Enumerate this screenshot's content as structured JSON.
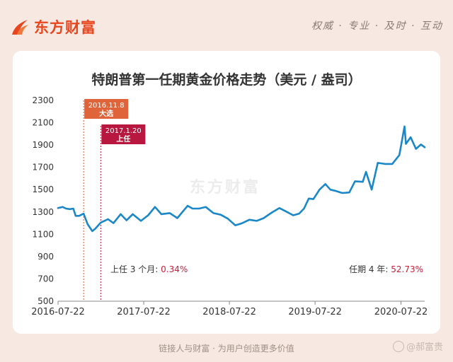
{
  "brand": {
    "name": "东方财富"
  },
  "slogan": "权威 · 专业 · 及时 · 互动",
  "footer": "链接人与财富 · 为用户创造更多价值",
  "watermark": "@郝富贵",
  "colors": {
    "line": "#1a87c8",
    "brand": "#e8461e",
    "badge_election": "#e0643a",
    "badge_inauguration": "#b8173f",
    "highlight": "#c8203c"
  },
  "chart_data": {
    "type": "line",
    "title": "特朗普第一任期黄金价格走势（美元 / 盎司）",
    "xlabel": "",
    "ylabel": "",
    "x_range": [
      "2016-07-22",
      "2020-10-31"
    ],
    "ylim": [
      500,
      2300
    ],
    "y_ticks": [
      "500",
      "700",
      "900",
      "1100",
      "1300",
      "1500",
      "1700",
      "1900",
      "2100",
      "2300"
    ],
    "x_ticks": [
      "2016-07-22",
      "2017-07-22",
      "2018-07-22",
      "2019-07-22",
      "2020-07-22"
    ],
    "watermark": "东方财富",
    "annotations": [
      {
        "date": "2016-11-08",
        "line1": "2016.11.8",
        "line2": "大选"
      },
      {
        "date": "2017-01-20",
        "line1": "2017.1.20",
        "line2": "上任"
      }
    ],
    "stat_left": {
      "label": "上任 3 个月:",
      "value": "0.34%"
    },
    "stat_right": {
      "label": "任期 4 年:",
      "value": "52.73%"
    },
    "series": [
      {
        "x": [
          "2016-07-22",
          "2016-08-10",
          "2016-08-25",
          "2016-09-10",
          "2016-09-25",
          "2016-10-05",
          "2016-10-20",
          "2016-11-08",
          "2016-11-25",
          "2016-12-15",
          "2016-12-28",
          "2017-01-20",
          "2017-02-20",
          "2017-03-15",
          "2017-04-15",
          "2017-05-10",
          "2017-06-05",
          "2017-07-10",
          "2017-08-10",
          "2017-09-08",
          "2017-10-05",
          "2017-11-10",
          "2017-12-12",
          "2018-01-25",
          "2018-02-15",
          "2018-03-15",
          "2018-04-12",
          "2018-05-15",
          "2018-06-15",
          "2018-07-15",
          "2018-08-16",
          "2018-09-15",
          "2018-10-15",
          "2018-11-15",
          "2018-12-15",
          "2019-01-15",
          "2019-02-20",
          "2019-03-15",
          "2019-04-20",
          "2019-05-15",
          "2019-06-05",
          "2019-06-25",
          "2019-07-15",
          "2019-08-10",
          "2019-09-04",
          "2019-09-25",
          "2019-10-15",
          "2019-11-15",
          "2019-12-15",
          "2020-01-08",
          "2020-02-10",
          "2020-02-24",
          "2020-03-19",
          "2020-04-14",
          "2020-05-15",
          "2020-06-15",
          "2020-07-15",
          "2020-08-06",
          "2020-08-12",
          "2020-09-01",
          "2020-09-24",
          "2020-10-15",
          "2020-10-31"
        ],
        "values": [
          1335,
          1345,
          1330,
          1325,
          1330,
          1265,
          1265,
          1285,
          1190,
          1128,
          1150,
          1205,
          1235,
          1200,
          1280,
          1225,
          1280,
          1220,
          1270,
          1345,
          1280,
          1290,
          1245,
          1355,
          1330,
          1330,
          1345,
          1290,
          1275,
          1240,
          1180,
          1200,
          1230,
          1220,
          1245,
          1290,
          1335,
          1310,
          1270,
          1285,
          1330,
          1420,
          1415,
          1500,
          1550,
          1500,
          1490,
          1470,
          1475,
          1575,
          1570,
          1660,
          1500,
          1740,
          1730,
          1730,
          1810,
          2067,
          1910,
          1970,
          1865,
          1905,
          1880
        ]
      }
    ]
  }
}
